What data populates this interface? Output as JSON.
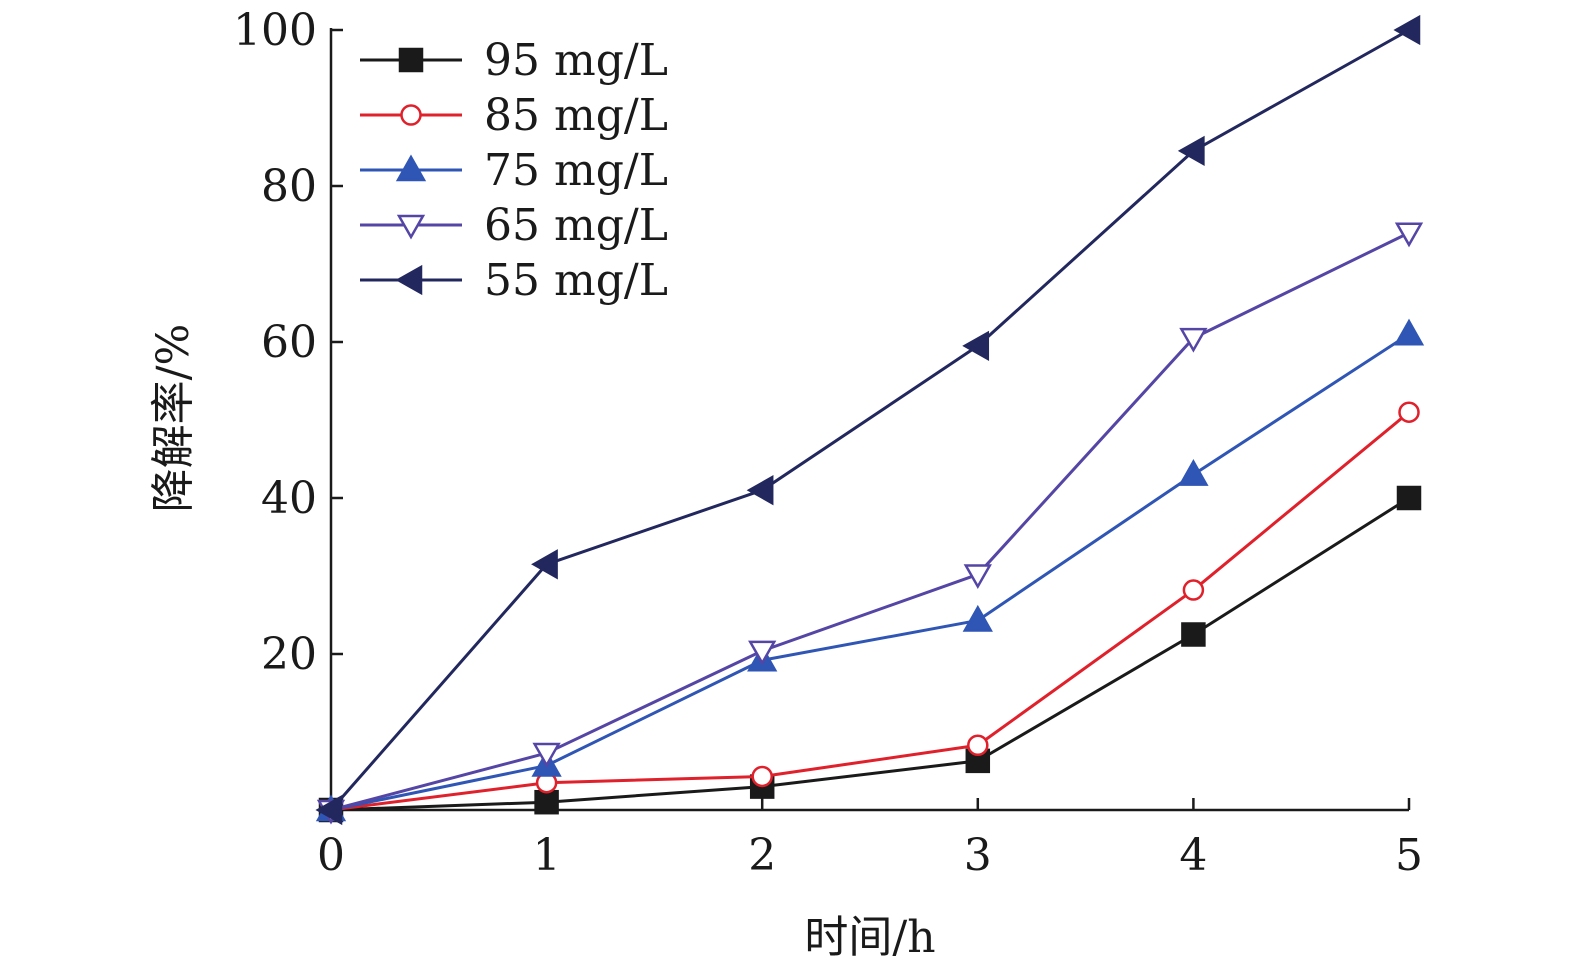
{
  "chart_data": {
    "type": "line",
    "xlabel": "时间/h",
    "ylabel": "降解率/%",
    "xlim": [
      0,
      5
    ],
    "ylim": [
      0,
      100
    ],
    "x_ticks": [
      0,
      1,
      2,
      3,
      4,
      5
    ],
    "y_ticks": [
      20,
      40,
      60,
      80,
      100
    ],
    "grid": false,
    "legend_position": "top-left",
    "x": [
      0,
      1,
      2,
      3,
      4,
      5
    ],
    "series": [
      {
        "name": "95 mg/L",
        "color": "#1a1a1a",
        "marker": "square-filled",
        "values": [
          0,
          1,
          3,
          6.3,
          22.5,
          40
        ]
      },
      {
        "name": "85 mg/L",
        "color": "#e0202a",
        "marker": "circle-open",
        "values": [
          0,
          3.5,
          4.3,
          8.3,
          28.2,
          51
        ]
      },
      {
        "name": "75 mg/L",
        "color": "#2f55b5",
        "marker": "triangle-up-filled",
        "values": [
          0,
          5.7,
          19.2,
          24.3,
          43,
          61
        ]
      },
      {
        "name": "65 mg/L",
        "color": "#5546a6",
        "marker": "triangle-down-open",
        "values": [
          0,
          7.3,
          20.4,
          30.2,
          60.5,
          74
        ]
      },
      {
        "name": "55 mg/L",
        "color": "#22285e",
        "marker": "triangle-left-filled",
        "values": [
          0,
          31.5,
          41,
          59.5,
          84.5,
          100
        ]
      }
    ]
  }
}
